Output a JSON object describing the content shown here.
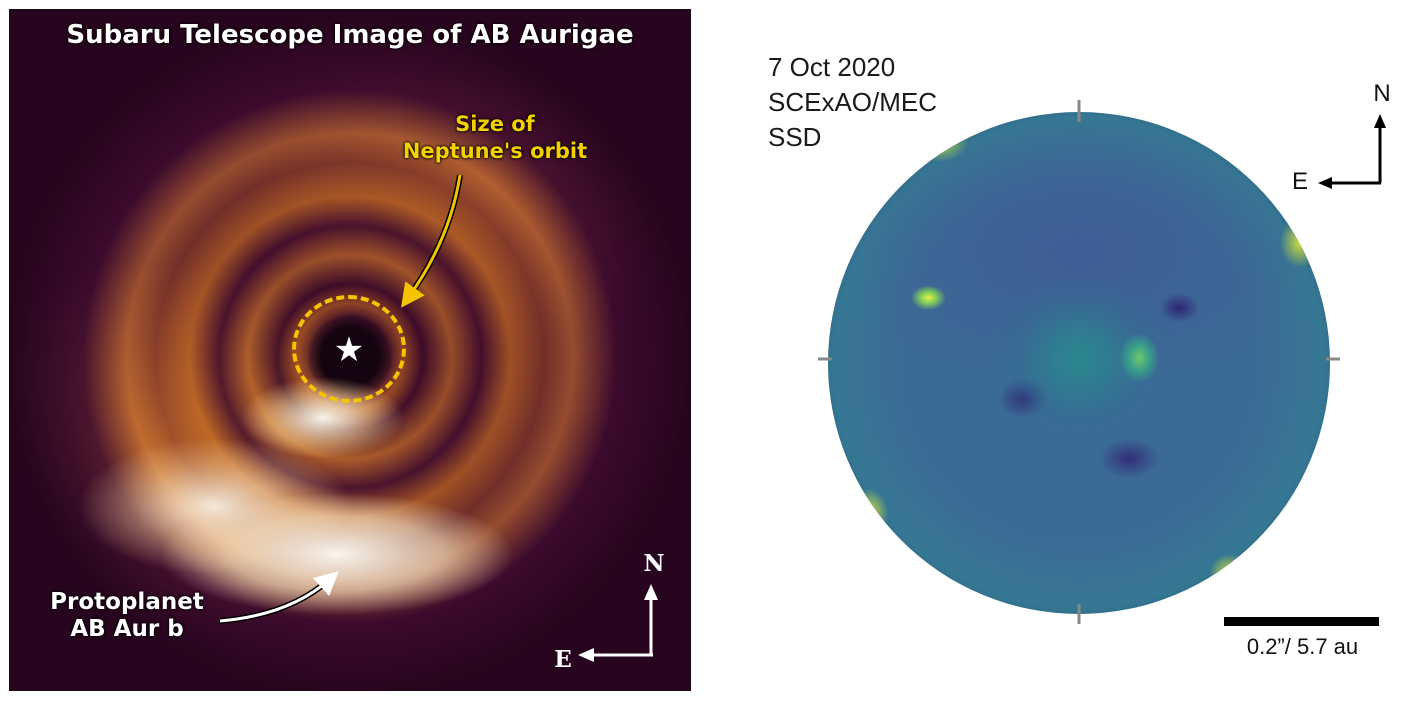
{
  "left_panel": {
    "title": "Subaru Telescope Image of AB Aurigae",
    "orbit_label_line1": "Size of",
    "orbit_label_line2": "Neptune's orbit",
    "protoplanet_label_line1": "Protoplanet",
    "protoplanet_label_line2": "AB Aur b",
    "star_glyph": "★",
    "compass": {
      "north": "N",
      "east": "E"
    },
    "colors": {
      "title": "#ffffff",
      "orbit_annotation": "#f5c400",
      "background": "#3a0a2a"
    }
  },
  "right_panel": {
    "date": "7 Oct 2020",
    "instrument": "SCExAO/MEC",
    "mode": "SSD",
    "compass": {
      "north": "N",
      "east": "E"
    },
    "scale_label": "0.2”/ 5.7 au",
    "colors": {
      "disk": "#3b6a96",
      "bright_spot": "#e8f04a"
    }
  }
}
